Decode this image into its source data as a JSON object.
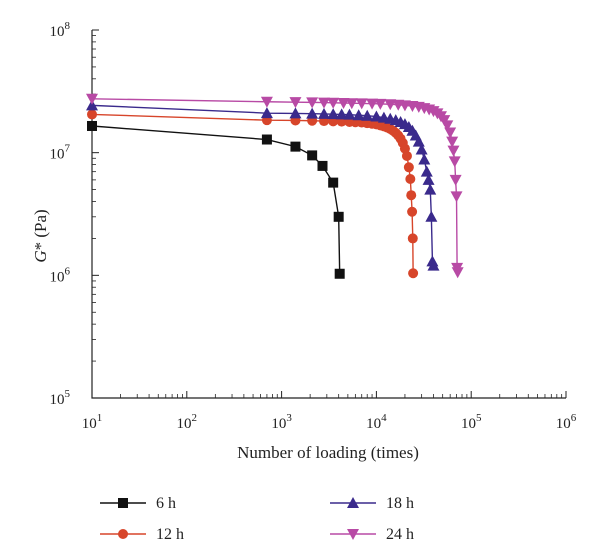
{
  "chart_data": {
    "type": "line",
    "title": "",
    "xlabel": "Number of loading (times)",
    "ylabel": "G* (Pa)",
    "xscale": "log",
    "yscale": "log",
    "xlim": [
      10,
      1000000
    ],
    "ylim": [
      100000,
      100000000
    ],
    "x_ticks": [
      {
        "base": "10",
        "exp": "1"
      },
      {
        "base": "10",
        "exp": "2"
      },
      {
        "base": "10",
        "exp": "3"
      },
      {
        "base": "10",
        "exp": "4"
      },
      {
        "base": "10",
        "exp": "5"
      },
      {
        "base": "10",
        "exp": "6"
      }
    ],
    "y_ticks": [
      {
        "base": "10",
        "exp": "5"
      },
      {
        "base": "10",
        "exp": "6"
      },
      {
        "base": "10",
        "exp": "7"
      },
      {
        "base": "10",
        "exp": "8"
      }
    ],
    "grid": false,
    "legend_position": "bottom",
    "series": [
      {
        "name": "6 h",
        "color": "#111111",
        "marker": "square",
        "x": [
          10,
          700,
          1400,
          2100,
          2700,
          3500,
          4000,
          4100
        ],
        "y": [
          16500000,
          12800000,
          11200000,
          9500000,
          7800000,
          5700000,
          3000000,
          1030000
        ]
      },
      {
        "name": "12 h",
        "color": "#d7452a",
        "marker": "circle",
        "x": [
          10,
          700,
          1400,
          2100,
          2800,
          3500,
          4300,
          5200,
          6000,
          7000,
          8000,
          9000,
          10000,
          11000,
          12000,
          13000,
          14000,
          15000,
          16000,
          17000,
          18000,
          19000,
          20000,
          21000,
          22000,
          22800,
          23300,
          23800,
          24200,
          24400
        ],
        "y": [
          20500000,
          18400000,
          18300000,
          18200000,
          18100000,
          18000000,
          17900000,
          17800000,
          17700000,
          17600000,
          17400000,
          17200000,
          17000000,
          16700000,
          16400000,
          16000000,
          15600000,
          15100000,
          14500000,
          13800000,
          13000000,
          12000000,
          10800000,
          9400000,
          7600000,
          6100000,
          4500000,
          3300000,
          2000000,
          1040000
        ]
      },
      {
        "name": "18 h",
        "color": "#3a2a8c",
        "marker": "triangle-up",
        "x": [
          10,
          700,
          1400,
          2100,
          2800,
          3500,
          4300,
          5200,
          6500,
          8000,
          10000,
          12000,
          14000,
          16000,
          18000,
          20000,
          22000,
          24000,
          26000,
          28000,
          30000,
          32000,
          34000,
          35500,
          37000,
          38000,
          39000,
          40000
        ],
        "y": [
          24300000,
          21000000,
          20900000,
          20800000,
          20700000,
          20600000,
          20500000,
          20400000,
          20200000,
          20000000,
          19700000,
          19300000,
          18900000,
          18400000,
          17800000,
          17100000,
          16200000,
          15100000,
          13800000,
          12300000,
          10600000,
          8800000,
          7000000,
          6000000,
          5000000,
          3000000,
          1300000,
          1200000
        ]
      },
      {
        "name": "24 h",
        "color": "#b84aa5",
        "marker": "triangle-down",
        "x": [
          10,
          700,
          1400,
          2100,
          2800,
          3500,
          4500,
          5500,
          7000,
          9000,
          11000,
          14000,
          17000,
          20000,
          24000,
          28000,
          32000,
          36000,
          40000,
          44000,
          48000,
          52000,
          56000,
          60000,
          63000,
          65000,
          67000,
          68500,
          70000,
          71000,
          72000
        ],
        "y": [
          27500000,
          26000000,
          25800000,
          25700000,
          25600000,
          25500000,
          25400000,
          25300000,
          25200000,
          25100000,
          25000000,
          24800000,
          24600000,
          24300000,
          24000000,
          23600000,
          23100000,
          22500000,
          21800000,
          20900000,
          19800000,
          18400000,
          16700000,
          14600000,
          12300000,
          10400000,
          8500000,
          6000000,
          4400000,
          1150000,
          1060000
        ]
      }
    ]
  }
}
